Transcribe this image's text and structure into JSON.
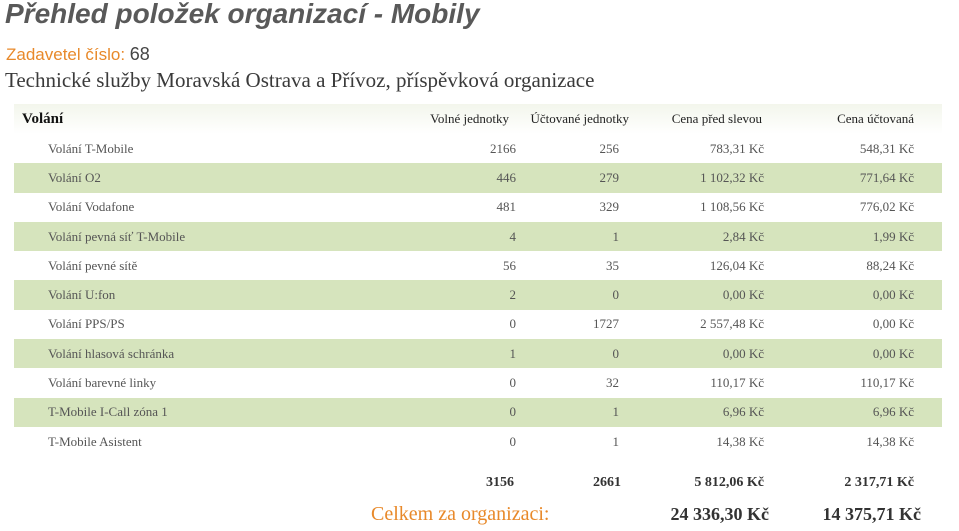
{
  "page": {
    "title": "Přehled položek organizací - Mobily",
    "payer_label": "Zadavetel číslo:",
    "payer_number": "68",
    "organization": "Technické služby Moravská Ostrava a Přívoz, příspěvková organizace"
  },
  "table": {
    "section": "Volání",
    "columns": {
      "free": "Volné jednotky",
      "billed": "Účtované jednotky",
      "before": "Cena před slevou",
      "charged": "Cena účtovaná"
    },
    "rows": [
      {
        "name": "Volání T-Mobile",
        "free": "2166",
        "billed": "256",
        "before": "783,31 Kč",
        "charged": "548,31 Kč"
      },
      {
        "name": "Volání O2",
        "free": "446",
        "billed": "279",
        "before": "1 102,32 Kč",
        "charged": "771,64 Kč"
      },
      {
        "name": "Volání Vodafone",
        "free": "481",
        "billed": "329",
        "before": "1 108,56 Kč",
        "charged": "776,02 Kč"
      },
      {
        "name": "Volání pevná síť T-Mobile",
        "free": "4",
        "billed": "1",
        "before": "2,84 Kč",
        "charged": "1,99 Kč"
      },
      {
        "name": "Volání pevné sítě",
        "free": "56",
        "billed": "35",
        "before": "126,04 Kč",
        "charged": "88,24 Kč"
      },
      {
        "name": "Volání U:fon",
        "free": "2",
        "billed": "0",
        "before": "0,00 Kč",
        "charged": "0,00 Kč"
      },
      {
        "name": "Volání PPS/PS",
        "free": "0",
        "billed": "1727",
        "before": "2 557,48 Kč",
        "charged": "0,00 Kč"
      },
      {
        "name": "Volání hlasová schránka",
        "free": "1",
        "billed": "0",
        "before": "0,00 Kč",
        "charged": "0,00 Kč"
      },
      {
        "name": "Volání barevné linky",
        "free": "0",
        "billed": "32",
        "before": "110,17 Kč",
        "charged": "110,17 Kč"
      },
      {
        "name": "T-Mobile I-Call zóna 1",
        "free": "0",
        "billed": "1",
        "before": "6,96 Kč",
        "charged": "6,96 Kč"
      },
      {
        "name": "T-Mobile Asistent",
        "free": "0",
        "billed": "1",
        "before": "14,38 Kč",
        "charged": "14,38 Kč"
      }
    ],
    "totals": {
      "free": "3156",
      "billed": "2661",
      "before": "5 812,06 Kč",
      "charged": "2 317,71 Kč"
    }
  },
  "grand_total": {
    "label": "Celkem za organizaci:",
    "before": "24 336,30 Kč",
    "charged": "14 375,71 Kč"
  },
  "colors": {
    "alt_row": "#d6e4bd",
    "accent": "#e8892a"
  }
}
